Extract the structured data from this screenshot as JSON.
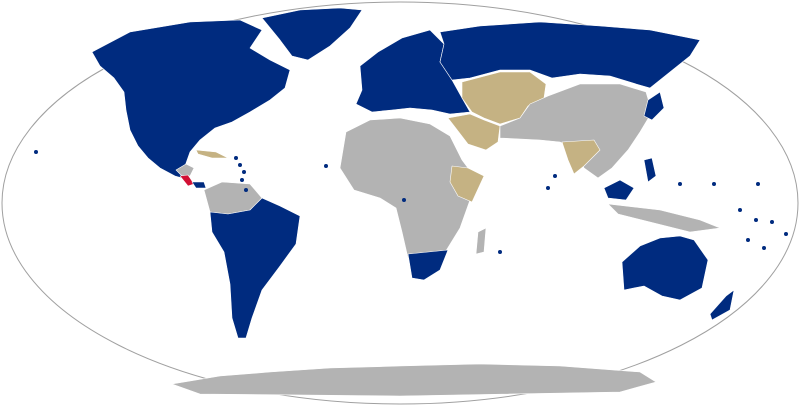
{
  "map": {
    "projection": "Robinson",
    "colors": {
      "category_a": "#002B7F",
      "category_b": "#C5B283",
      "category_c": "#D21034",
      "other": "#B3B3B3",
      "ocean": "#FFFFFF",
      "border": "#FFFFFF",
      "outline": "#A0A0A0"
    }
  }
}
